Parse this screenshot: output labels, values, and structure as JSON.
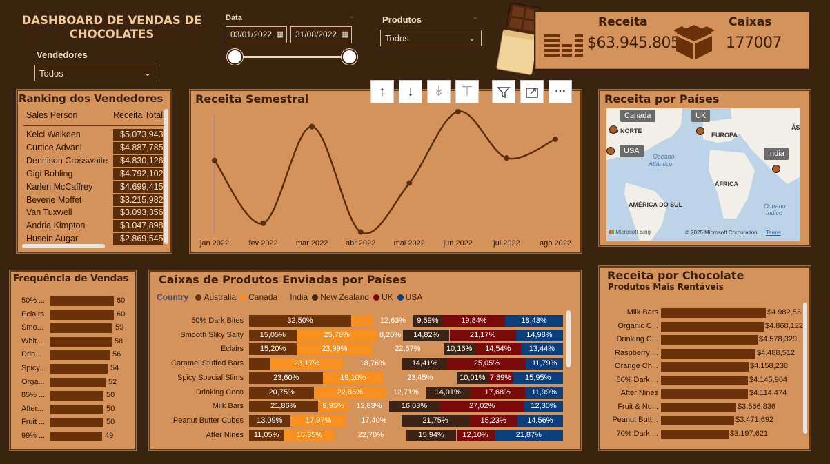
{
  "header": {
    "title": "DASHBOARD DE VENDAS DE CHOCOLATES",
    "vendedores_label": "Vendedores",
    "vendedores_value": "Todos",
    "data_label": "Data",
    "date_start": "03/01/2022",
    "date_end": "31/08/2022",
    "produtos_label": "Produtos",
    "produtos_value": "Todos"
  },
  "kpis": {
    "receita_label": "Receita",
    "receita_value": "$63.945.805",
    "caixas_label": "Caixas",
    "caixas_value": "177007"
  },
  "visual_toolbar": {
    "icons": [
      "arrow-up-icon",
      "arrow-down-icon",
      "double-arrow-down-icon",
      "expand-hierarchy-icon",
      "filter-icon",
      "focus-mode-icon",
      "more-options-icon"
    ]
  },
  "ranking": {
    "title": "Ranking dos Vendedores",
    "col_person": "Sales Person",
    "col_total": "Receita Total",
    "rows": [
      {
        "name": "Kelci Walkden",
        "value": "$5.073,943"
      },
      {
        "name": "Curtice Advani",
        "value": "$4.887,785"
      },
      {
        "name": "Dennison Crosswaite",
        "value": "$4.830,126"
      },
      {
        "name": "Gigi Bohling",
        "value": "$4.792,102"
      },
      {
        "name": "Karlen McCaffrey",
        "value": "$4.699,415"
      },
      {
        "name": "Beverie Moffet",
        "value": "$3.215,982"
      },
      {
        "name": "Van Tuxwell",
        "value": "$3.093,356"
      },
      {
        "name": "Andria Kimpton",
        "value": "$3.047,898"
      },
      {
        "name": "Husein Augar",
        "value": "$2.869,545"
      }
    ]
  },
  "receita_semestral": {
    "title": "Receita Semestral"
  },
  "mapa": {
    "title": "Receita por Países",
    "tags": [
      "Canada",
      "UK",
      "USA",
      "India"
    ],
    "labels": [
      "DO NORTE",
      "EUROPA",
      "ÁS",
      "Oceano",
      "Atlântico",
      "ÁFRICA",
      "AMÉRICA DO SUL",
      "Oceano",
      "Índico"
    ],
    "bing": "Microsoft Bing",
    "copyright": "© 2025 Microsoft Corporation",
    "terms": "Terms"
  },
  "frequencia": {
    "title": "Frequência de Vendas",
    "items": [
      {
        "label": "50% ...",
        "value": 60
      },
      {
        "label": "Eclairs",
        "value": 60
      },
      {
        "label": "Smo...",
        "value": 59
      },
      {
        "label": "Whit...",
        "value": 58
      },
      {
        "label": "Drin...",
        "value": 56
      },
      {
        "label": "Spicy...",
        "value": 54
      },
      {
        "label": "Orga...",
        "value": 52
      },
      {
        "label": "85% ...",
        "value": 50
      },
      {
        "label": "After...",
        "value": 50
      },
      {
        "label": "Fruit ...",
        "value": 50
      },
      {
        "label": "99% ...",
        "value": 49
      }
    ]
  },
  "caixas": {
    "title": "Caixas de Produtos Enviadas por Países",
    "legend_title": "Country",
    "legend": [
      {
        "name": "Australia",
        "color": "#6a3208"
      },
      {
        "name": "Canada",
        "color": "#f7901e"
      },
      {
        "name": "India",
        "color": "#d4935a"
      },
      {
        "name": "New Zealand",
        "color": "#3b2416"
      },
      {
        "name": "UK",
        "color": "#7a0a0a"
      },
      {
        "name": "USA",
        "color": "#0b3f7c"
      }
    ],
    "rows": [
      {
        "label": "50% Dark Bites",
        "values": [
          "32,50%",
          "",
          "12,63%",
          "9,59%",
          "19,84%",
          "18,43%"
        ],
        "pct": [
          32.5,
          6.99,
          12.63,
          9.59,
          19.84,
          18.43
        ]
      },
      {
        "label": "Smooth Sliky Salty",
        "values": [
          "15,05%",
          "25,78%",
          "8,20%",
          "14,82%",
          "21,17%",
          "14,98%"
        ],
        "pct": [
          15.05,
          25.78,
          8.2,
          14.82,
          21.17,
          14.98
        ]
      },
      {
        "label": "Eclairs",
        "values": [
          "15,20%",
          "23,99%",
          "22,67%",
          "10,16%",
          "14,54%",
          "13,44%"
        ],
        "pct": [
          15.2,
          23.99,
          22.67,
          10.16,
          14.54,
          13.44
        ]
      },
      {
        "label": "Caramel Stuffed Bars",
        "values": [
          "",
          "23,17%",
          "18,76%",
          "14,41%",
          "25,05%",
          "11,79%"
        ],
        "pct": [
          6.82,
          23.17,
          18.76,
          14.41,
          25.05,
          11.79
        ]
      },
      {
        "label": "Spicy Special Slims",
        "values": [
          "23,60%",
          "19,10%",
          "23,45%",
          "10,01%",
          "7,89%",
          "15,95%"
        ],
        "pct": [
          23.6,
          19.1,
          23.45,
          10.01,
          7.89,
          15.95
        ]
      },
      {
        "label": "Drinking Coco",
        "values": [
          "20,75%",
          "22,86%",
          "12,71%",
          "14,01%",
          "17,68%",
          "11,99%"
        ],
        "pct": [
          20.75,
          22.86,
          12.71,
          14.01,
          17.68,
          11.99
        ]
      },
      {
        "label": "Milk Bars",
        "values": [
          "21,86%",
          "9,95%",
          "12,83%",
          "16,03%",
          "27,02%",
          "12,30%"
        ],
        "pct": [
          21.86,
          9.95,
          12.83,
          16.03,
          27.02,
          12.3
        ]
      },
      {
        "label": "Peanut Butter Cubes",
        "values": [
          "13,09%",
          "17,97%",
          "17,40%",
          "21,75%",
          "15,23%",
          "14,56%"
        ],
        "pct": [
          13.09,
          17.97,
          17.4,
          21.75,
          15.23,
          14.56
        ]
      },
      {
        "label": "After Nines",
        "values": [
          "11,05%",
          "16,35%",
          "22,70%",
          "15,94%",
          "12,10%",
          "21,87%"
        ],
        "pct": [
          11.05,
          16.35,
          22.7,
          15.94,
          12.1,
          21.87
        ]
      }
    ]
  },
  "receita_chocolate": {
    "title": "Receita por Chocolate",
    "subtitle": "Produtos Mais Rentáveis",
    "items": [
      {
        "label": "Milk Bars",
        "value": "$4.982,53",
        "num": 4982.53
      },
      {
        "label": "Organic C...",
        "value": "$4.868,122",
        "num": 4868.122
      },
      {
        "label": "Drinking C...",
        "value": "$4.578,329",
        "num": 4578.329
      },
      {
        "label": "Raspberry ...",
        "value": "$4.488,512",
        "num": 4488.512
      },
      {
        "label": "Orange Ch...",
        "value": "$4.158,238",
        "num": 4158.238
      },
      {
        "label": "50% Dark ...",
        "value": "$4.145,904",
        "num": 4145.904
      },
      {
        "label": "After Nines",
        "value": "$4.114,474",
        "num": 4114.474
      },
      {
        "label": "Fruit & Nu...",
        "value": "$3.566,836",
        "num": 3566.836
      },
      {
        "label": "Peanut Butt...",
        "value": "$3.471,692",
        "num": 3471.692
      },
      {
        "label": "70% Dark ...",
        "value": "$3.197,621",
        "num": 3197.621
      }
    ]
  },
  "chart_data": {
    "type": "line",
    "title": "Receita Semestral",
    "categories": [
      "jan 2022",
      "fev 2022",
      "mar 2022",
      "abr 2022",
      "mai 2022",
      "jun 2022",
      "jul 2022",
      "ago 2022"
    ],
    "values": [
      0.6,
      0.1,
      0.87,
      0.03,
      0.42,
      0.99,
      0.62,
      0.77
    ],
    "ylim": [
      0,
      1
    ],
    "grid": false
  }
}
